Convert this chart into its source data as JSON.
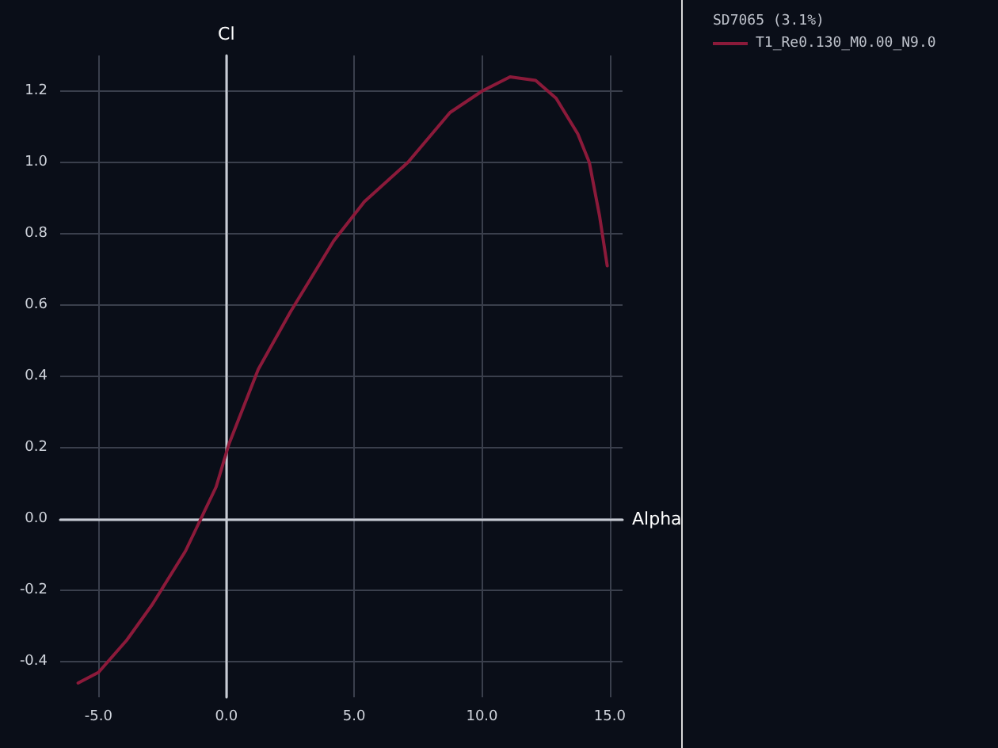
{
  "chart_data": {
    "type": "line",
    "xlabel": "Alpha",
    "ylabel": "Cl",
    "legend_title": "SD7065 (3.1%)",
    "series": [
      {
        "name": "T1_Re0.130_M0.00_N9.0",
        "color": "#8b1a3a",
        "x": [
          -5.8,
          -5.0,
          -3.9,
          -2.9,
          -1.6,
          -1.0,
          -0.4,
          0.1,
          1.25,
          2.5,
          4.2,
          5.4,
          7.1,
          8.75,
          10.0,
          11.1,
          12.1,
          12.9,
          13.75,
          14.2,
          14.6,
          14.9
        ],
        "values": [
          -0.46,
          -0.43,
          -0.34,
          -0.24,
          -0.09,
          0.0,
          0.09,
          0.21,
          0.42,
          0.58,
          0.78,
          0.89,
          1.0,
          1.14,
          1.2,
          1.24,
          1.23,
          1.18,
          1.08,
          1.0,
          0.85,
          0.71
        ]
      }
    ],
    "xlim": [
      -6.5,
      15.5
    ],
    "ylim": [
      -0.5,
      1.3
    ],
    "xticks": [
      {
        "value": -5,
        "label": "-5.0"
      },
      {
        "value": 0,
        "label": "0.0"
      },
      {
        "value": 5,
        "label": "5.0"
      },
      {
        "value": 10,
        "label": "10.0"
      },
      {
        "value": 15,
        "label": "15.0"
      }
    ],
    "yticks": [
      {
        "value": -0.4,
        "label": "-0.4"
      },
      {
        "value": -0.2,
        "label": "-0.2"
      },
      {
        "value": 0,
        "label": "0.0"
      },
      {
        "value": 0.2,
        "label": "0.2"
      },
      {
        "value": 0.4,
        "label": "0.4"
      },
      {
        "value": 0.6,
        "label": "0.6"
      },
      {
        "value": 0.8,
        "label": "0.8"
      },
      {
        "value": 1.0,
        "label": "1.0"
      },
      {
        "value": 1.2,
        "label": "1.2"
      }
    ],
    "grid": true,
    "legend": "top right",
    "marker": "none",
    "line_style": "solid"
  }
}
